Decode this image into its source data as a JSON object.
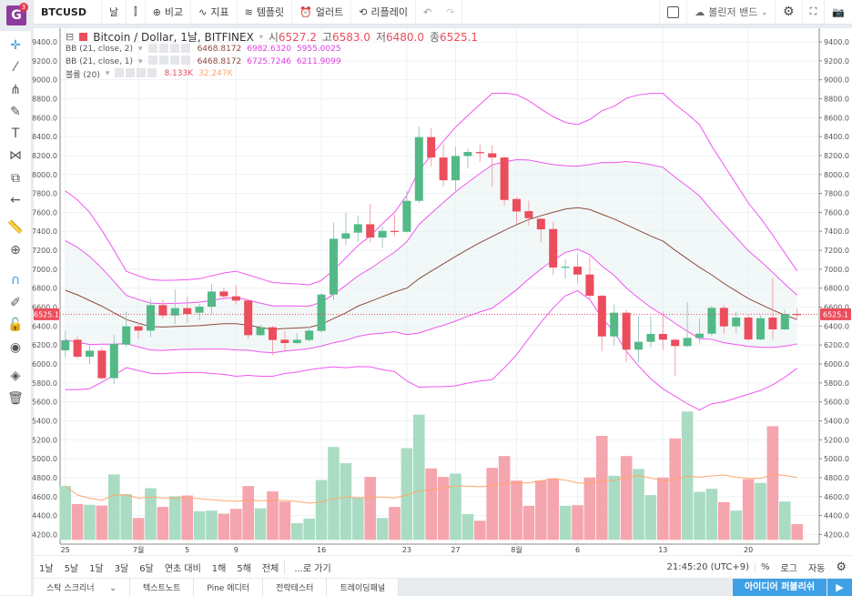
{
  "toolbar": {
    "symbol": "BTCUSD",
    "interval": "날",
    "compare": "비교",
    "indicators": "지표",
    "templates": "템플릿",
    "alert": "얼러트",
    "replay": "리플레이",
    "bollinger": "볼린저 밴드",
    "badge_count": "3",
    "logo_letter": "G"
  },
  "legend": {
    "title": "Bitcoin / Dollar, 1날, BITFINEX",
    "ohlc": [
      {
        "k": "시",
        "v": "6527.2"
      },
      {
        "k": "고",
        "v": "6583.0"
      },
      {
        "k": "저",
        "v": "6480.0"
      },
      {
        "k": "종",
        "v": "6525.1"
      }
    ],
    "bb2": {
      "name": "BB (21, close, 2)",
      "basis": "6468.8172",
      "upper": "6982.6320",
      "lower": "5955.0025"
    },
    "bb1": {
      "name": "BB (21, close, 1)",
      "basis": "6468.8172",
      "upper": "6725.7246",
      "lower": "6211.9099"
    },
    "vol": {
      "name": "볼륨 (20)",
      "value": "8.133K",
      "ma": "32.247K"
    }
  },
  "range": {
    "items": [
      "1날",
      "5날",
      "1달",
      "3달",
      "6달",
      "연초 대비",
      "1해",
      "5해",
      "전체"
    ],
    "goto": "...로 가기",
    "time": "21:45:20 (UTC+9)",
    "percent": "%",
    "log": "로그",
    "auto": "자동"
  },
  "tabs": [
    "스탁 스크리너",
    "텍스트노트",
    "Pine 에디터",
    "전략테스터",
    "트레이딩패널"
  ],
  "publish": "아이디어 퍼블리쉬",
  "colors": {
    "up": "#53b987",
    "down": "#eb4d5c",
    "vol_up": "#a9dcc3",
    "vol_down": "#f5a5ad",
    "band": "#f055f0",
    "basis": "#8d4b3c",
    "vol_ma": "#ffa76b",
    "price_tag": "#eb4d5c"
  },
  "chart_data": {
    "type": "candlestick",
    "price_axis": {
      "min": 4200,
      "max": 9400,
      "step": 200
    },
    "last_price": "6525.1",
    "x_labels": [
      {
        "i": 0,
        "t": "25"
      },
      {
        "i": 6,
        "t": "7월"
      },
      {
        "i": 10,
        "t": "5"
      },
      {
        "i": 14,
        "t": "9"
      },
      {
        "i": 21,
        "t": "16"
      },
      {
        "i": 28,
        "t": "23"
      },
      {
        "i": 32,
        "t": "27"
      },
      {
        "i": 37,
        "t": "8월"
      },
      {
        "i": 42,
        "t": "6"
      },
      {
        "i": 49,
        "t": "13"
      },
      {
        "i": 56,
        "t": "20"
      }
    ],
    "ohlc": [
      [
        6144,
        6346,
        6077,
        6250
      ],
      [
        6256,
        6291,
        6058,
        6077
      ],
      [
        6077,
        6195,
        5997,
        6141
      ],
      [
        6141,
        6173,
        5837,
        5850
      ],
      [
        5850,
        6307,
        5789,
        6211
      ],
      [
        6205,
        6554,
        6180,
        6397
      ],
      [
        6397,
        6445,
        6266,
        6352
      ],
      [
        6352,
        6685,
        6285,
        6621
      ],
      [
        6621,
        6682,
        6477,
        6512
      ],
      [
        6512,
        6787,
        6419,
        6589
      ],
      [
        6589,
        6707,
        6435,
        6528
      ],
      [
        6541,
        6637,
        6461,
        6605
      ],
      [
        6605,
        6845,
        6522,
        6765
      ],
      [
        6765,
        6803,
        6682,
        6714
      ],
      [
        6714,
        6829,
        6630,
        6669
      ],
      [
        6669,
        6680,
        6266,
        6304
      ],
      [
        6304,
        6413,
        6290,
        6387
      ],
      [
        6387,
        6400,
        6093,
        6253
      ],
      [
        6256,
        6346,
        6144,
        6221
      ],
      [
        6221,
        6326,
        6210,
        6256
      ],
      [
        6253,
        6394,
        6240,
        6352
      ],
      [
        6349,
        6749,
        6330,
        6733
      ],
      [
        6733,
        7491,
        6675,
        7322
      ],
      [
        7322,
        7594,
        7258,
        7379
      ],
      [
        7386,
        7565,
        7290,
        7475
      ],
      [
        7475,
        7690,
        7283,
        7335
      ],
      [
        7335,
        7459,
        7226,
        7405
      ],
      [
        7405,
        7578,
        7347,
        7395
      ],
      [
        7395,
        7827,
        7390,
        7722
      ],
      [
        7722,
        8506,
        7699,
        8394
      ],
      [
        8394,
        8490,
        8083,
        8179
      ],
      [
        8179,
        8323,
        7875,
        7939
      ],
      [
        7939,
        8291,
        7827,
        8195
      ],
      [
        8195,
        8275,
        8067,
        8237
      ],
      [
        8237,
        8314,
        8131,
        8224
      ],
      [
        8224,
        8307,
        7866,
        8179
      ],
      [
        8179,
        8190,
        7674,
        7731
      ],
      [
        7741,
        7763,
        7475,
        7610
      ],
      [
        7613,
        7722,
        7459,
        7539
      ],
      [
        7533,
        7540,
        7283,
        7421
      ],
      [
        7424,
        7501,
        6938,
        7018
      ],
      [
        7020,
        7101,
        6899,
        7027
      ],
      [
        7027,
        7162,
        6851,
        6944
      ],
      [
        6944,
        7139,
        6675,
        6720
      ],
      [
        6720,
        6730,
        6138,
        6291
      ],
      [
        6291,
        6627,
        6195,
        6541
      ],
      [
        6541,
        6573,
        6023,
        6151
      ],
      [
        6151,
        6499,
        6016,
        6234
      ],
      [
        6234,
        6499,
        6170,
        6317
      ],
      [
        6317,
        6554,
        6147,
        6256
      ],
      [
        6256,
        6265,
        5869,
        6189
      ],
      [
        6189,
        6653,
        6180,
        6275
      ],
      [
        6275,
        6483,
        6221,
        6320
      ],
      [
        6320,
        6611,
        6298,
        6592
      ],
      [
        6592,
        6621,
        6317,
        6397
      ],
      [
        6397,
        6554,
        6323,
        6490
      ],
      [
        6490,
        6515,
        6243,
        6259
      ],
      [
        6259,
        6515,
        6250,
        6483
      ],
      [
        6490,
        6906,
        6259,
        6365
      ],
      [
        6365,
        6573,
        6360,
        6528
      ],
      [
        6527.2,
        6583,
        6480,
        6525.1
      ]
    ],
    "bb_basis": [
      6778,
      6730,
      6670,
      6610,
      6540,
      6470,
      6430,
      6395,
      6390,
      6395,
      6400,
      6405,
      6415,
      6425,
      6425,
      6410,
      6385,
      6365,
      6375,
      6380,
      6387,
      6420,
      6480,
      6540,
      6611,
      6660,
      6710,
      6760,
      6800,
      6900,
      6980,
      7057,
      7135,
      7210,
      7280,
      7345,
      7410,
      7470,
      7525,
      7565,
      7600,
      7635,
      7650,
      7630,
      7580,
      7530,
      7470,
      7410,
      7350,
      7297,
      7200,
      7110,
      7020,
      6940,
      6850,
      6770,
      6691,
      6630,
      6570,
      6515,
      6469
    ],
    "bb_upper2": [
      7827,
      7731,
      7600,
      7411,
      7200,
      6979,
      6930,
      6890,
      6883,
      6885,
      6890,
      6900,
      6930,
      6960,
      6979,
      6940,
      6900,
      6860,
      6851,
      6845,
      6835,
      6883,
      6990,
      7120,
      7250,
      7350,
      7480,
      7600,
      7780,
      8046,
      8200,
      8353,
      8500,
      8622,
      8740,
      8856,
      8860,
      8843,
      8780,
      8690,
      8610,
      8550,
      8526,
      8580,
      8673,
      8720,
      8805,
      8840,
      8856,
      8856,
      8740,
      8640,
      8526,
      8300,
      8100,
      7900,
      7700,
      7540,
      7360,
      7170,
      6983
    ],
    "volume_k": [
      27.8,
      18.5,
      18.1,
      17.7,
      33.8,
      23.6,
      11.3,
      26.7,
      17.0,
      22.5,
      22.9,
      14.8,
      15.1,
      13.5,
      16.0,
      27.8,
      16.3,
      25.0,
      19.8,
      8.6,
      11.0,
      30.9,
      48.0,
      39.6,
      22.0,
      32.5,
      11.3,
      17.0,
      47.4,
      64.7,
      36.9,
      32.5,
      34.2,
      13.3,
      9.9,
      37.2,
      43.3,
      30.6,
      17.6,
      30.6,
      31.7,
      17.6,
      17.9,
      32.2,
      53.7,
      33.1,
      43.3,
      36.6,
      23.1,
      32.2,
      52.4,
      66.3,
      24.8,
      26.4,
      19.5,
      15.1,
      31.4,
      29.4,
      58.7,
      19.8,
      8.133
    ]
  }
}
